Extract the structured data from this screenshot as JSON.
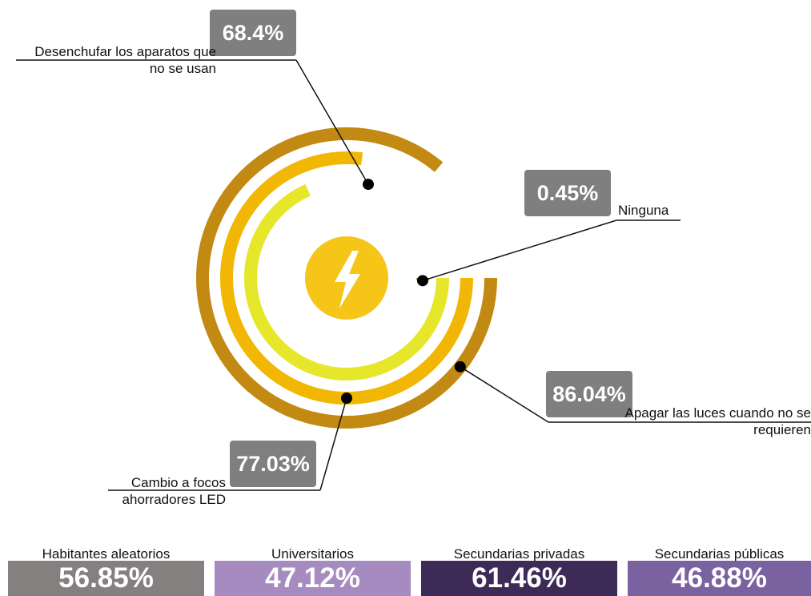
{
  "chart_data": {
    "type": "radial_bar",
    "ylim": [
      0,
      100
    ],
    "series": [
      {
        "name": "Desenchufar los aparatos que no se usan",
        "color": "#e6e62a",
        "values": [
          68.4
        ],
        "value_labels": [
          "68.4%"
        ]
      },
      {
        "name": "Ninguna",
        "color": "#c8961e",
        "values": [
          0.45
        ],
        "value_labels": [
          "0.45%"
        ]
      },
      {
        "name": "Apagar las luces cuando no se requieren",
        "color": "#c28a12",
        "values": [
          86.04
        ],
        "value_labels": [
          "86.04%"
        ]
      },
      {
        "name": "Cambio a focos ahorradores LED",
        "color": "#f2b705",
        "values": [
          77.03
        ],
        "value_labels": [
          "77.03%"
        ]
      }
    ]
  },
  "groups": [
    {
      "label": "Habitantes aleatorios",
      "value": "56.85%",
      "color": "#858080"
    },
    {
      "label": "Universitarios",
      "value": "47.12%",
      "color": "#a58bbf"
    },
    {
      "label": "Secundarias privadas",
      "value": "61.46%",
      "color": "#3d2a56"
    },
    {
      "label": "Secundarias públicas",
      "value": "46.88%",
      "color": "#7a62a0"
    }
  ]
}
